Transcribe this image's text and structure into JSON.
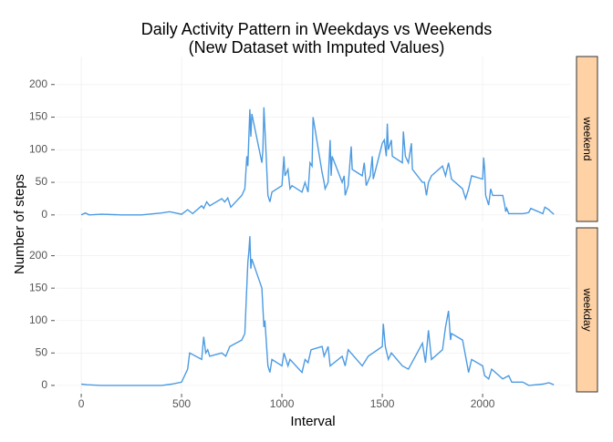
{
  "chart_data": {
    "type": "line",
    "title": "Daily Activity Pattern in Weekdays vs Weekends",
    "subtitle": "(New Dataset with Imputed Values)",
    "xlabel": "Interval",
    "ylabel": "Number of steps",
    "xlim": [
      -123,
      2436
    ],
    "xticks": [
      0,
      500,
      1000,
      1500,
      2000
    ],
    "ylim": [
      -10,
      243
    ],
    "yticks": [
      0,
      50,
      100,
      150,
      200
    ],
    "grid": true,
    "color": "#4c9be2",
    "strip_color": "#ffd2a6",
    "panels": [
      {
        "name": "weekend",
        "x": [
          0,
          20,
          40,
          100,
          200,
          300,
          400,
          440,
          500,
          530,
          555,
          600,
          610,
          625,
          640,
          700,
          715,
          730,
          745,
          800,
          815,
          825,
          830,
          840,
          845,
          850,
          900,
          905,
          910,
          920,
          930,
          940,
          950,
          1000,
          1010,
          1015,
          1030,
          1040,
          1050,
          1100,
          1115,
          1130,
          1140,
          1150,
          1155,
          1200,
          1210,
          1215,
          1230,
          1240,
          1245,
          1250,
          1300,
          1310,
          1315,
          1330,
          1345,
          1350,
          1400,
          1410,
          1420,
          1440,
          1450,
          1455,
          1500,
          1510,
          1520,
          1525,
          1530,
          1545,
          1550,
          1600,
          1605,
          1615,
          1630,
          1645,
          1650,
          1700,
          1710,
          1720,
          1730,
          1745,
          1800,
          1815,
          1830,
          1845,
          1900,
          1915,
          1930,
          1945,
          2000,
          2005,
          2010,
          2015,
          2030,
          2040,
          2050,
          2100,
          2110,
          2115,
          2120,
          2130,
          2200,
          2220,
          2230,
          2240,
          2300,
          2310,
          2330,
          2340,
          2355
        ],
        "values": [
          0,
          3,
          0,
          1,
          0,
          0,
          3,
          5,
          1,
          8,
          2,
          14,
          10,
          20,
          14,
          25,
          20,
          26,
          12,
          30,
          40,
          90,
          75,
          162,
          120,
          155,
          80,
          100,
          165,
          100,
          30,
          20,
          35,
          45,
          90,
          60,
          70,
          40,
          45,
          35,
          50,
          35,
          80,
          75,
          150,
          65,
          50,
          40,
          50,
          115,
          60,
          90,
          50,
          60,
          30,
          45,
          105,
          70,
          60,
          80,
          45,
          60,
          90,
          55,
          110,
          115,
          90,
          140,
          100,
          115,
          90,
          80,
          128,
          90,
          80,
          110,
          70,
          50,
          50,
          30,
          50,
          60,
          75,
          60,
          80,
          55,
          40,
          25,
          40,
          60,
          55,
          88,
          70,
          30,
          15,
          40,
          30,
          30,
          15,
          5,
          10,
          2,
          2,
          3,
          4,
          10,
          2,
          12,
          8,
          5,
          1
        ]
      },
      {
        "name": "weekday",
        "x": [
          0,
          30,
          100,
          200,
          300,
          400,
          450,
          500,
          530,
          540,
          600,
          610,
          620,
          630,
          640,
          700,
          720,
          740,
          800,
          815,
          830,
          835,
          840,
          845,
          850,
          900,
          910,
          915,
          930,
          940,
          950,
          1000,
          1010,
          1030,
          1040,
          1100,
          1115,
          1130,
          1145,
          1200,
          1210,
          1230,
          1240,
          1300,
          1315,
          1330,
          1400,
          1430,
          1500,
          1505,
          1515,
          1530,
          1545,
          1600,
          1630,
          1700,
          1715,
          1730,
          1745,
          1800,
          1815,
          1830,
          1840,
          1845,
          1900,
          1930,
          1945,
          2000,
          2010,
          2030,
          2045,
          2100,
          2130,
          2145,
          2200,
          2230,
          2300,
          2330,
          2355
        ],
        "values": [
          2,
          1,
          0,
          0,
          0,
          0,
          2,
          5,
          25,
          50,
          40,
          75,
          50,
          55,
          45,
          50,
          45,
          60,
          70,
          80,
          190,
          206,
          230,
          180,
          195,
          150,
          90,
          100,
          30,
          20,
          40,
          30,
          50,
          30,
          40,
          20,
          40,
          35,
          55,
          60,
          45,
          60,
          30,
          45,
          30,
          55,
          30,
          45,
          60,
          95,
          60,
          40,
          50,
          30,
          25,
          65,
          35,
          85,
          40,
          55,
          90,
          115,
          70,
          80,
          70,
          20,
          40,
          30,
          15,
          10,
          25,
          10,
          15,
          5,
          5,
          0,
          2,
          4,
          1
        ]
      }
    ]
  }
}
